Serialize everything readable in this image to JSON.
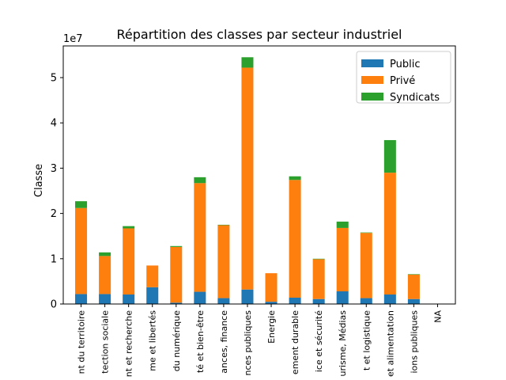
{
  "chart_data": {
    "type": "bar",
    "stacked": true,
    "title": "Répartition des classes par secteur industriel",
    "ylabel": "Classe",
    "xlabel": "",
    "y_offset_label": "1e7",
    "ylim": [
      0,
      57000000
    ],
    "yticks": [
      0,
      10000000,
      20000000,
      30000000,
      40000000,
      50000000
    ],
    "ytick_labels": [
      "0",
      "1",
      "2",
      "3",
      "4",
      "5"
    ],
    "categories": [
      "nt du territoire",
      "tection sociale",
      "nt et recherche",
      "me et libertés",
      "du numérique",
      "té et bien-être",
      "ances, finance",
      "nces publiques",
      "Energie",
      "ement durable",
      "ice et sécurité",
      "urisme, Médias",
      "t et logistique",
      "et alimentation",
      "ions publiques",
      "NA"
    ],
    "series": [
      {
        "name": "Public",
        "color": "#1f77b4",
        "values": [
          2200000,
          2200000,
          2100000,
          3700000,
          300000,
          2700000,
          1300000,
          3200000,
          500000,
          1400000,
          1100000,
          2800000,
          1300000,
          2100000,
          1100000,
          0
        ]
      },
      {
        "name": "Privé",
        "color": "#ff7f0e",
        "values": [
          19000000,
          8400000,
          14600000,
          4800000,
          12300000,
          24000000,
          16100000,
          49000000,
          6300000,
          26000000,
          8800000,
          14000000,
          14400000,
          26900000,
          5400000,
          0
        ]
      },
      {
        "name": "Syndicats",
        "color": "#2ca02c",
        "values": [
          1500000,
          800000,
          500000,
          0,
          200000,
          1300000,
          100000,
          2300000,
          0,
          800000,
          100000,
          1400000,
          100000,
          7200000,
          100000,
          0
        ]
      }
    ],
    "legend_position": "upper-right",
    "grid": false
  }
}
